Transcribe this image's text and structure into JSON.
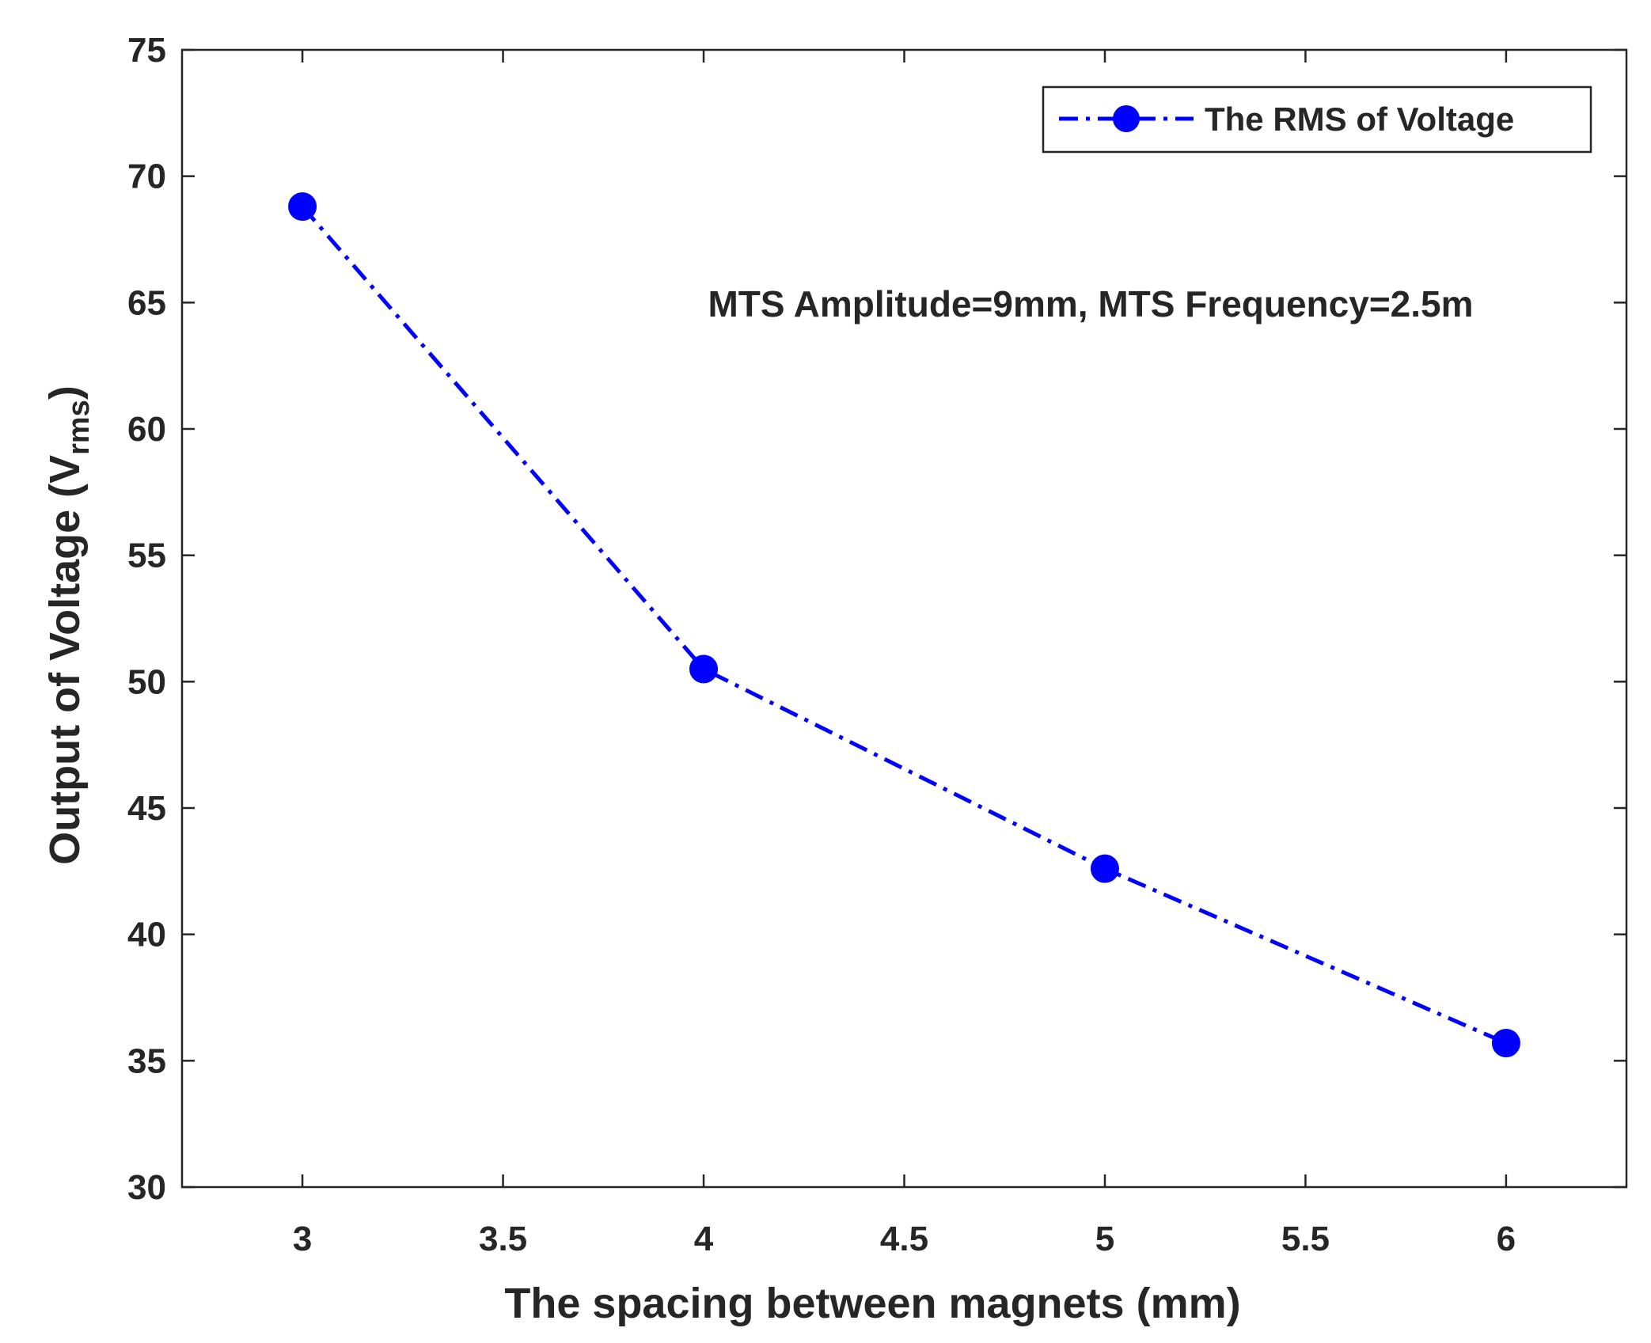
{
  "chart_data": {
    "type": "line",
    "title": "",
    "xlabel": "The spacing between magnets (mm)",
    "ylabel": {
      "main": "Output of Voltage (V",
      "subscript": "rms",
      "close": ")"
    },
    "annotation": "MTS Amplitude=9mm, MTS Frequency=2.5m",
    "xlim": [
      2.7,
      6.3
    ],
    "ylim": [
      30,
      75
    ],
    "xticks": [
      3,
      3.5,
      4,
      4.5,
      5,
      5.5,
      6
    ],
    "xtick_labels": [
      "3",
      "3.5",
      "4",
      "4.5",
      "5",
      "5.5",
      "6"
    ],
    "yticks": [
      30,
      35,
      40,
      45,
      50,
      55,
      60,
      65,
      70,
      75
    ],
    "ytick_labels": [
      "30",
      "35",
      "40",
      "45",
      "50",
      "55",
      "60",
      "65",
      "70",
      "75"
    ],
    "grid": false,
    "legend_position": "top-right",
    "series": [
      {
        "name": "The RMS of Voltage",
        "color": "#0000ff",
        "line_style": "dash-dot",
        "marker": "circle",
        "x": [
          3,
          4,
          5,
          6
        ],
        "y": [
          68.8,
          50.5,
          42.6,
          35.7
        ]
      }
    ]
  }
}
